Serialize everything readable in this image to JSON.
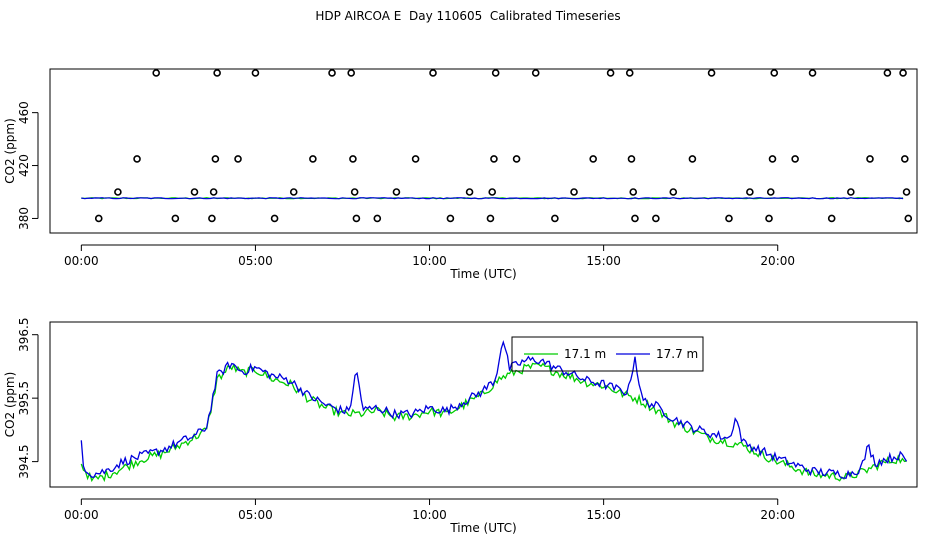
{
  "title": "HDP AIRCOA E  Day 110605  Calibrated Timeseries",
  "chart_data": [
    {
      "type": "scatter",
      "xlabel": "Time (UTC)",
      "ylabel": "CO2 (ppm)",
      "xlim": [
        -0.9,
        24
      ],
      "ylim": [
        369,
        493
      ],
      "x_tick_values": [
        0,
        5,
        10,
        15,
        20
      ],
      "x_tick_labels": [
        "00:00",
        "05:00",
        "10:00",
        "15:00",
        "20:00"
      ],
      "y_tick_values": [
        380,
        420,
        460
      ],
      "y_tick_labels": [
        "380",
        "420",
        "460"
      ],
      "calibration_points": [
        {
          "x": 0.5,
          "y": 380
        },
        {
          "x": 1.05,
          "y": 400
        },
        {
          "x": 1.6,
          "y": 425
        },
        {
          "x": 2.15,
          "y": 490
        },
        {
          "x": 2.7,
          "y": 380
        },
        {
          "x": 3.25,
          "y": 400
        },
        {
          "x": 3.75,
          "y": 380
        },
        {
          "x": 3.8,
          "y": 400
        },
        {
          "x": 3.85,
          "y": 425
        },
        {
          "x": 3.9,
          "y": 490
        },
        {
          "x": 4.5,
          "y": 425
        },
        {
          "x": 5.0,
          "y": 490
        },
        {
          "x": 5.55,
          "y": 380
        },
        {
          "x": 6.1,
          "y": 400
        },
        {
          "x": 6.65,
          "y": 425
        },
        {
          "x": 7.2,
          "y": 490
        },
        {
          "x": 7.75,
          "y": 490
        },
        {
          "x": 7.8,
          "y": 425
        },
        {
          "x": 7.85,
          "y": 400
        },
        {
          "x": 7.9,
          "y": 380
        },
        {
          "x": 8.5,
          "y": 380
        },
        {
          "x": 9.05,
          "y": 400
        },
        {
          "x": 9.6,
          "y": 425
        },
        {
          "x": 10.1,
          "y": 490
        },
        {
          "x": 10.6,
          "y": 380
        },
        {
          "x": 11.15,
          "y": 400
        },
        {
          "x": 11.75,
          "y": 380
        },
        {
          "x": 11.8,
          "y": 400
        },
        {
          "x": 11.85,
          "y": 425
        },
        {
          "x": 11.9,
          "y": 490
        },
        {
          "x": 12.5,
          "y": 425
        },
        {
          "x": 13.05,
          "y": 490
        },
        {
          "x": 13.6,
          "y": 380
        },
        {
          "x": 14.15,
          "y": 400
        },
        {
          "x": 14.7,
          "y": 425
        },
        {
          "x": 15.2,
          "y": 490
        },
        {
          "x": 15.75,
          "y": 490
        },
        {
          "x": 15.8,
          "y": 425
        },
        {
          "x": 15.85,
          "y": 400
        },
        {
          "x": 15.9,
          "y": 380
        },
        {
          "x": 16.5,
          "y": 380
        },
        {
          "x": 17.0,
          "y": 400
        },
        {
          "x": 17.55,
          "y": 425
        },
        {
          "x": 18.1,
          "y": 490
        },
        {
          "x": 18.6,
          "y": 380
        },
        {
          "x": 19.2,
          "y": 400
        },
        {
          "x": 19.75,
          "y": 380
        },
        {
          "x": 19.8,
          "y": 400
        },
        {
          "x": 19.85,
          "y": 425
        },
        {
          "x": 19.9,
          "y": 490
        },
        {
          "x": 20.5,
          "y": 425
        },
        {
          "x": 21.0,
          "y": 490
        },
        {
          "x": 21.55,
          "y": 380
        },
        {
          "x": 22.1,
          "y": 400
        },
        {
          "x": 22.65,
          "y": 425
        },
        {
          "x": 23.15,
          "y": 490
        },
        {
          "x": 23.6,
          "y": 490
        },
        {
          "x": 23.65,
          "y": 425
        },
        {
          "x": 23.7,
          "y": 400
        },
        {
          "x": 23.75,
          "y": 380
        }
      ],
      "series": [
        {
          "name": "17.1 m",
          "color": "#00cc00",
          "baseline": 395.3
        },
        {
          "name": "17.7 m",
          "color": "#0000dd",
          "baseline": 395.3
        }
      ]
    },
    {
      "type": "line",
      "xlabel": "Time (UTC)",
      "ylabel": "CO2 (ppm)",
      "xlim": [
        -0.9,
        24
      ],
      "ylim": [
        394.1,
        396.7
      ],
      "x_tick_values": [
        0,
        5,
        10,
        15,
        20
      ],
      "x_tick_labels": [
        "00:00",
        "05:00",
        "10:00",
        "15:00",
        "20:00"
      ],
      "y_tick_values": [
        394.5,
        395.5,
        396.5
      ],
      "y_tick_labels": [
        "394.5",
        "395.5",
        "396.5"
      ],
      "legend": {
        "position": "top-center",
        "entries": [
          "17.1 m",
          "17.7 m"
        ]
      },
      "series": [
        {
          "name": "17.1 m",
          "color": "#00cc00",
          "anchors": {
            "x": [
              0.0,
              0.3,
              0.7,
              1.2,
              1.8,
              2.3,
              2.8,
              3.3,
              3.6,
              3.9,
              4.3,
              4.6,
              5.0,
              5.5,
              6.0,
              6.5,
              7.0,
              7.5,
              8.0,
              8.5,
              9.0,
              9.5,
              10.0,
              10.5,
              11.0,
              11.5,
              12.0,
              12.4,
              12.8,
              13.2,
              13.6,
              14.0,
              14.5,
              15.0,
              15.5,
              16.0,
              16.5,
              17.0,
              17.5,
              18.0,
              18.5,
              19.0,
              19.5,
              20.0,
              20.5,
              21.0,
              21.5,
              22.0,
              22.5,
              23.0,
              23.5,
              23.7
            ],
            "y": [
              394.45,
              394.2,
              394.28,
              394.4,
              394.55,
              394.62,
              394.75,
              394.9,
              395.0,
              395.8,
              396.0,
              395.9,
              395.95,
              395.8,
              395.72,
              395.5,
              395.35,
              395.25,
              395.25,
              395.3,
              395.2,
              395.22,
              395.3,
              395.25,
              395.4,
              395.55,
              395.8,
              395.9,
              395.98,
              396.0,
              395.92,
              395.85,
              395.75,
              395.7,
              395.58,
              395.48,
              395.32,
              395.12,
              395.0,
              394.88,
              394.82,
              394.75,
              394.62,
              394.5,
              394.4,
              394.3,
              394.28,
              394.25,
              394.35,
              394.48,
              394.55,
              394.45
            ]
          }
        },
        {
          "name": "17.7 m",
          "color": "#0000dd",
          "anchors": {
            "x": [
              0.0,
              0.05,
              0.3,
              0.7,
              1.2,
              1.8,
              2.3,
              2.8,
              3.3,
              3.6,
              3.9,
              4.3,
              4.6,
              5.0,
              5.5,
              6.0,
              6.5,
              7.0,
              7.5,
              8.0,
              8.5,
              9.0,
              9.5,
              10.0,
              10.5,
              11.0,
              11.5,
              12.0,
              12.4,
              12.8,
              13.2,
              13.6,
              14.0,
              14.5,
              15.0,
              15.5,
              15.8,
              16.0,
              16.2,
              16.5,
              17.0,
              17.5,
              18.0,
              18.5,
              19.0,
              19.5,
              20.0,
              20.5,
              21.0,
              21.5,
              22.0,
              22.5,
              23.0,
              23.5,
              23.7
            ],
            "y": [
              394.82,
              394.45,
              394.3,
              394.35,
              394.5,
              394.6,
              394.68,
              394.8,
              394.92,
              395.05,
              395.85,
              396.05,
              395.92,
              395.98,
              395.85,
              395.78,
              395.55,
              395.4,
              395.3,
              395.3,
              395.35,
              395.25,
              395.25,
              395.35,
              395.3,
              395.45,
              395.6,
              395.85,
              396.0,
              396.1,
              396.1,
              395.98,
              395.9,
              395.78,
              395.72,
              395.62,
              395.58,
              395.5,
              395.45,
              395.38,
              395.18,
              395.05,
              394.95,
              394.88,
              394.8,
              394.68,
              394.55,
              394.45,
              394.35,
              394.32,
              394.3,
              394.42,
              394.52,
              394.6,
              394.5
            ]
          },
          "spikes": [
            {
              "x": 12.1,
              "y": 396.45
            },
            {
              "x": 7.9,
              "y": 395.95
            },
            {
              "x": 15.9,
              "y": 396.15
            },
            {
              "x": 18.8,
              "y": 395.2
            },
            {
              "x": 22.6,
              "y": 394.75
            }
          ]
        }
      ]
    }
  ]
}
